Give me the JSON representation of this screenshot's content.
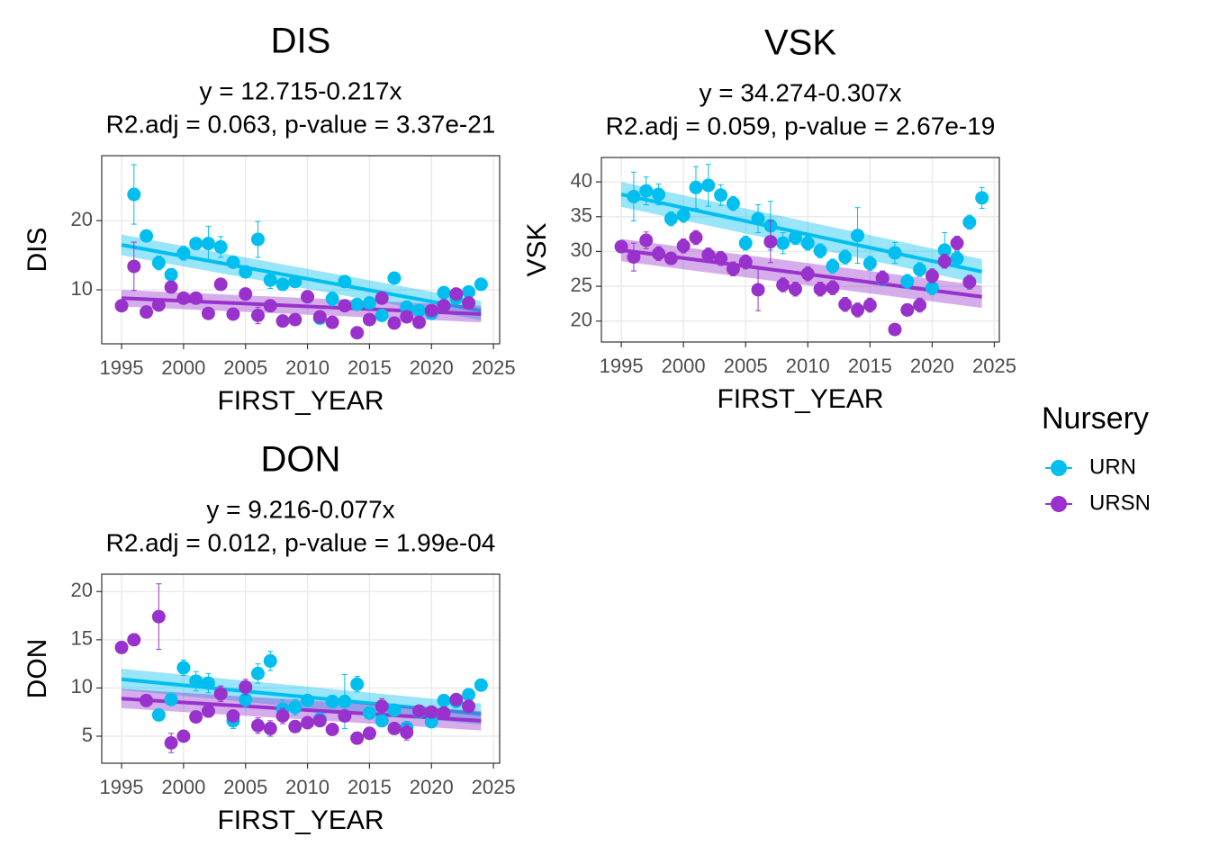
{
  "legend": {
    "title": "Nursery",
    "position": "right"
  },
  "chart_data": [
    {
      "type": "scatter",
      "title": "DIS",
      "subtitle": [
        "y = 12.715-0.217x",
        "R2.adj = 0.063, p-value = 3.37e-21"
      ],
      "xlabel": "FIRST_YEAR",
      "ylabel": "DIS",
      "xlim": [
        1993.4,
        2025.5
      ],
      "xticks": [
        1995,
        2000,
        2005,
        2010,
        2015,
        2020,
        2025
      ],
      "ylim": [
        2.2,
        29.4
      ],
      "yticks": [
        10,
        20
      ],
      "grid": true,
      "series": [
        {
          "name": "URN",
          "color": "#00bfef",
          "x": [
            1996,
            1997,
            1998,
            1999,
            2000,
            2001,
            2002,
            2003,
            2004,
            2005,
            2006,
            2007,
            2008,
            2009,
            2010,
            2011,
            2012,
            2013,
            2014,
            2015,
            2016,
            2017,
            2018,
            2019,
            2020,
            2021,
            2022,
            2023,
            2024
          ],
          "values": [
            23.8,
            17.8,
            13.9,
            12.2,
            15.3,
            16.7,
            16.7,
            16.2,
            14.0,
            12.6,
            17.3,
            11.4,
            10.8,
            11.2,
            9.0,
            5.9,
            8.7,
            11.2,
            7.9,
            8.1,
            6.3,
            11.7,
            7.5,
            7.0,
            6.6,
            9.6,
            8.8,
            9.7,
            10.8
          ],
          "errors": [
            4.3,
            0.6,
            1.0,
            0.8,
            1.0,
            0.8,
            2.5,
            1.5,
            0.8,
            0.7,
            2.6,
            1.2,
            0.8,
            0.6,
            0.8,
            0.6,
            1.0,
            0.8,
            0.8,
            0.7,
            0.6,
            0.8,
            0.6,
            0.6,
            0.6,
            0.8,
            0.6,
            0.6,
            0.6
          ],
          "fit": {
            "x": [
              1995,
              2024
            ],
            "values": [
              16.5,
              7.0
            ],
            "lower": [
              15.0,
              5.6
            ],
            "upper": [
              18.0,
              8.4
            ]
          }
        },
        {
          "name": "URSN",
          "color": "#9932cc",
          "x": [
            1995,
            1996,
            1997,
            1998,
            1999,
            2000,
            2001,
            2002,
            2003,
            2004,
            2005,
            2006,
            2007,
            2008,
            2009,
            2010,
            2011,
            2012,
            2013,
            2014,
            2015,
            2016,
            2017,
            2018,
            2019,
            2020,
            2021,
            2022,
            2023
          ],
          "values": [
            7.7,
            13.4,
            6.8,
            7.8,
            10.4,
            8.8,
            8.8,
            6.6,
            10.8,
            6.5,
            9.4,
            6.3,
            7.7,
            5.5,
            5.7,
            9.0,
            6.1,
            5.3,
            7.7,
            3.8,
            5.7,
            8.8,
            5.2,
            6.1,
            5.3,
            7.0,
            7.7,
            9.4,
            8.1
          ],
          "errors": [
            0.5,
            3.5,
            0.5,
            0.5,
            0.8,
            0.5,
            0.5,
            0.5,
            0.6,
            0.5,
            0.8,
            1.2,
            0.5,
            0.6,
            0.5,
            0.6,
            0.5,
            0.5,
            0.6,
            0.5,
            0.5,
            0.6,
            0.5,
            0.5,
            0.5,
            0.5,
            0.5,
            0.6,
            0.6
          ],
          "fit": {
            "x": [
              1995,
              2024
            ],
            "values": [
              8.8,
              6.5
            ],
            "lower": [
              7.6,
              5.3
            ],
            "upper": [
              10.0,
              7.7
            ]
          }
        }
      ]
    },
    {
      "type": "scatter",
      "title": "VSK",
      "subtitle": [
        "y = 34.274-0.307x",
        "R2.adj = 0.059, p-value = 2.67e-19"
      ],
      "xlabel": "FIRST_YEAR",
      "ylabel": "VSK",
      "xlim": [
        1993.4,
        2025.4
      ],
      "xticks": [
        1995,
        2000,
        2005,
        2010,
        2015,
        2020,
        2025
      ],
      "ylim": [
        17.0,
        43.5
      ],
      "yticks": [
        20,
        25,
        30,
        35,
        40
      ],
      "grid": true,
      "series": [
        {
          "name": "URN",
          "color": "#00bfef",
          "x": [
            1996,
            1997,
            1998,
            1999,
            2000,
            2001,
            2002,
            2003,
            2004,
            2005,
            2006,
            2007,
            2008,
            2009,
            2010,
            2011,
            2012,
            2013,
            2014,
            2015,
            2016,
            2017,
            2018,
            2019,
            2020,
            2021,
            2022,
            2023,
            2024
          ],
          "values": [
            37.9,
            38.7,
            38.2,
            34.7,
            35.2,
            39.2,
            39.5,
            38.1,
            36.9,
            31.2,
            34.7,
            33.7,
            31.2,
            32.0,
            31.2,
            30.1,
            27.9,
            29.2,
            32.3,
            28.3,
            26.1,
            29.8,
            25.7,
            27.4,
            24.8,
            30.2,
            29.0,
            34.2,
            37.7
          ],
          "errors": [
            3.5,
            2,
            1.5,
            1,
            1,
            3,
            3,
            1.5,
            1,
            1,
            2,
            3.5,
            1.5,
            1,
            1,
            1,
            1,
            1,
            4,
            1,
            1,
            1.5,
            1,
            1,
            1,
            2.5,
            1,
            1,
            1.5
          ],
          "fit": {
            "x": [
              1995,
              2024
            ],
            "values": [
              38.2,
              27.1
            ],
            "lower": [
              36.4,
              25.3
            ],
            "upper": [
              40.0,
              28.9
            ]
          }
        },
        {
          "name": "URSN",
          "color": "#9932cc",
          "x": [
            1995,
            1996,
            1997,
            1998,
            1999,
            2000,
            2001,
            2002,
            2003,
            2004,
            2005,
            2006,
            2007,
            2008,
            2009,
            2010,
            2011,
            2012,
            2013,
            2014,
            2015,
            2016,
            2017,
            2018,
            2019,
            2020,
            2021,
            2022,
            2023
          ],
          "values": [
            30.7,
            29.2,
            31.6,
            29.7,
            29.0,
            30.8,
            32.0,
            29.5,
            29.0,
            27.5,
            28.5,
            24.5,
            31.4,
            25.2,
            24.6,
            26.8,
            24.6,
            24.8,
            22.4,
            21.6,
            22.3,
            26.2,
            18.8,
            21.6,
            22.3,
            26.5,
            28.6,
            31.2,
            25.6
          ],
          "errors": [
            0.8,
            2,
            1.2,
            1,
            0.8,
            1,
            1,
            1,
            1,
            1,
            1,
            3,
            3,
            1,
            1,
            1,
            1,
            1,
            1,
            1,
            1,
            1,
            0.8,
            0.8,
            1,
            1,
            1,
            1,
            1
          ],
          "fit": {
            "x": [
              1995,
              2024
            ],
            "values": [
              30.2,
              23.5
            ],
            "lower": [
              28.6,
              21.9
            ],
            "upper": [
              31.8,
              25.1
            ]
          }
        }
      ]
    },
    {
      "type": "scatter",
      "title": "DON",
      "subtitle": [
        "y = 9.216-0.077x",
        "R2.adj = 0.012, p-value = 1.99e-04"
      ],
      "xlabel": "FIRST_YEAR",
      "ylabel": "DON",
      "xlim": [
        1993.4,
        2025.5
      ],
      "xticks": [
        1995,
        2000,
        2005,
        2010,
        2015,
        2020,
        2025
      ],
      "ylim": [
        2.2,
        21.8
      ],
      "yticks": [
        5,
        10,
        15,
        20
      ],
      "grid": true,
      "series": [
        {
          "name": "URN",
          "color": "#00bfef",
          "x": [
            1998,
            1999,
            2000,
            2001,
            2002,
            2003,
            2004,
            2005,
            2006,
            2007,
            2008,
            2009,
            2010,
            2011,
            2012,
            2013,
            2014,
            2015,
            2016,
            2017,
            2018,
            2019,
            2020,
            2021,
            2022,
            2023,
            2024
          ],
          "values": [
            7.2,
            8.8,
            12.1,
            10.7,
            10.5,
            9.4,
            6.6,
            8.8,
            11.5,
            12.8,
            7.8,
            8.0,
            8.7,
            6.8,
            8.6,
            8.6,
            10.4,
            7.4,
            6.6,
            7.7,
            5.9,
            7.5,
            6.5,
            8.7,
            8.6,
            9.3,
            10.3
          ],
          "errors": [
            0.5,
            0.6,
            0.8,
            1,
            1,
            0.8,
            0.8,
            0.8,
            1,
            1,
            1,
            0.8,
            0.6,
            0.6,
            0.6,
            2.8,
            0.8,
            0.6,
            0.6,
            0.6,
            0.6,
            0.6,
            0.6,
            0.6,
            0.6,
            0.6,
            0.6
          ],
          "fit": {
            "x": [
              1995,
              2024
            ],
            "values": [
              10.9,
              7.3
            ],
            "lower": [
              9.8,
              6.2
            ],
            "upper": [
              12.0,
              8.4
            ]
          }
        },
        {
          "name": "URSN",
          "color": "#9932cc",
          "x": [
            1995,
            1996,
            1997,
            1998,
            1999,
            2000,
            2001,
            2002,
            2003,
            2004,
            2005,
            2006,
            2007,
            2008,
            2009,
            2010,
            2011,
            2012,
            2013,
            2014,
            2015,
            2016,
            2017,
            2018,
            2019,
            2020,
            2021,
            2022,
            2023
          ],
          "values": [
            14.2,
            15.0,
            8.7,
            17.4,
            4.3,
            5.0,
            7.0,
            7.6,
            9.4,
            7.1,
            10.1,
            6.1,
            5.8,
            7.1,
            6.0,
            6.4,
            6.6,
            5.7,
            7.1,
            4.8,
            5.3,
            8.1,
            5.8,
            5.4,
            7.6,
            7.5,
            7.4,
            8.8,
            8.1
          ],
          "errors": [
            0.5,
            0.6,
            0.5,
            3.4,
            1,
            0.5,
            0.5,
            0.5,
            0.8,
            0.5,
            0.8,
            0.8,
            0.8,
            0.8,
            0.5,
            0.5,
            0.5,
            0.5,
            0.5,
            0.5,
            0.5,
            0.8,
            0.5,
            0.8,
            0.5,
            0.5,
            0.5,
            0.5,
            0.6
          ],
          "fit": {
            "x": [
              1995,
              2024
            ],
            "values": [
              8.9,
              6.6
            ],
            "lower": [
              7.9,
              5.6
            ],
            "upper": [
              9.9,
              7.6
            ]
          }
        }
      ]
    }
  ]
}
